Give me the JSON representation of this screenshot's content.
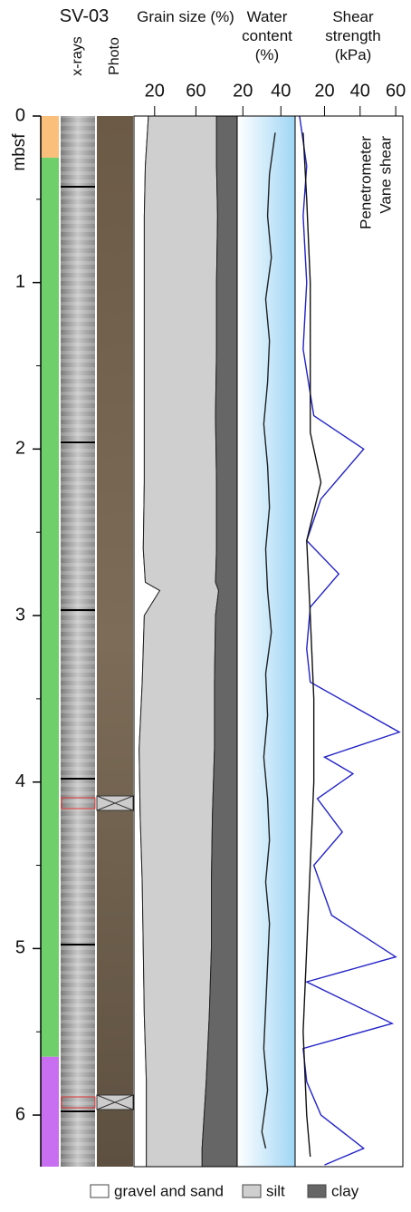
{
  "chart_data": [
    {
      "type": "core",
      "title": "SV-03",
      "columns": [
        "x-rays",
        "Photo"
      ],
      "ylabel": "mbsf",
      "ylim": [
        0,
        6.31
      ],
      "yticks": [
        0,
        1,
        2,
        3,
        4,
        5,
        6
      ],
      "minor_yticks": [
        0.5,
        1.5,
        2.5,
        3.5,
        4.5,
        5.5
      ],
      "units": [
        {
          "top": 0,
          "bottom": 0.25,
          "color": "#fbbf7c"
        },
        {
          "top": 0.25,
          "bottom": 5.65,
          "color": "#6fcf6a"
        },
        {
          "top": 5.65,
          "bottom": 6.31,
          "color": "#c86ef0"
        }
      ]
    },
    {
      "type": "area",
      "title": "Grain size (%)",
      "xlim": [
        0,
        100
      ],
      "xticks": [
        20,
        60
      ],
      "y": [
        0.0,
        0.3,
        0.6,
        1.0,
        1.4,
        1.8,
        2.2,
        2.6,
        2.8,
        2.85,
        3.0,
        3.4,
        3.8,
        4.2,
        4.6,
        5.0,
        5.4,
        5.8,
        6.2,
        6.31
      ],
      "series": [
        {
          "name": "gravel and sand",
          "color": "#ffffff",
          "values": [
            14,
            11,
            10,
            10,
            10,
            10,
            10,
            9,
            11,
            25,
            10,
            8,
            5,
            6,
            8,
            9,
            10,
            12,
            12,
            12
          ]
        },
        {
          "name": "silt",
          "color": "#cfcfcf",
          "values": [
            66,
            69,
            71,
            70,
            70,
            69,
            70,
            71,
            68,
            57,
            69,
            70,
            73,
            70,
            67,
            66,
            63,
            58,
            54,
            54
          ]
        },
        {
          "name": "clay",
          "color": "#666666",
          "values": [
            20,
            20,
            19,
            20,
            20,
            21,
            20,
            20,
            21,
            18,
            21,
            22,
            22,
            24,
            25,
            25,
            27,
            30,
            34,
            34
          ]
        }
      ]
    },
    {
      "type": "line",
      "title": "Water content (%)",
      "xlim": [
        17,
        47.5
      ],
      "xticks": [
        20,
        40
      ],
      "series": [
        {
          "color": "#222222",
          "y": [
            0.1,
            0.35,
            0.6,
            0.85,
            1.1,
            1.35,
            1.6,
            1.85,
            2.1,
            2.35,
            2.6,
            2.85,
            3.1,
            3.35,
            3.6,
            3.85,
            4.1,
            4.35,
            4.6,
            4.85,
            5.1,
            5.35,
            5.6,
            5.85,
            6.1,
            6.2
          ],
          "values": [
            37,
            34,
            33,
            35,
            32,
            34,
            33,
            31,
            33,
            34,
            32,
            33,
            35,
            32,
            33,
            31,
            33,
            34,
            32,
            34,
            33,
            32,
            31,
            33,
            30,
            32
          ]
        }
      ]
    },
    {
      "type": "line",
      "title": "Shear strength (kPa)",
      "xlim": [
        3.5,
        64
      ],
      "xticks": [
        20,
        40,
        60
      ],
      "series": [
        {
          "name": "Penetrometer",
          "color": "#2323c8",
          "y": [
            0.0,
            0.3,
            0.6,
            1.0,
            1.4,
            1.8,
            2.0,
            2.3,
            2.55,
            2.75,
            2.95,
            3.2,
            3.4,
            3.7,
            3.85,
            3.95,
            4.1,
            4.3,
            4.5,
            4.8,
            5.05,
            5.2,
            5.45,
            5.6,
            5.8,
            6.0,
            6.2,
            6.3
          ],
          "values": [
            6,
            10,
            8,
            10,
            8,
            14,
            42,
            18,
            10,
            28,
            12,
            10,
            12,
            62,
            20,
            36,
            16,
            30,
            14,
            24,
            60,
            10,
            58,
            8,
            10,
            18,
            42,
            20
          ]
        },
        {
          "name": "Vane shear",
          "color": "#111111",
          "y": [
            0.1,
            0.5,
            1.0,
            1.5,
            1.9,
            2.2,
            2.55,
            3.0,
            3.5,
            4.0,
            4.5,
            5.0,
            5.5,
            6.0,
            6.25
          ],
          "values": [
            8,
            10,
            12,
            12,
            12,
            18,
            10,
            12,
            14,
            14,
            12,
            10,
            8,
            10,
            12
          ]
        }
      ]
    }
  ]
}
